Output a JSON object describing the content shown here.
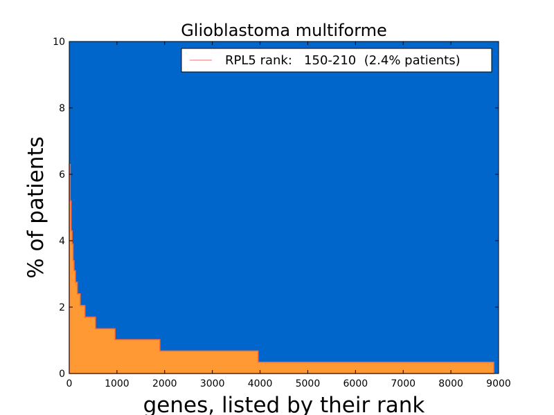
{
  "chart_data": {
    "type": "area",
    "title": "Glioblastoma multiforme",
    "xlabel": "genes, listed by their rank",
    "ylabel": "% of patients",
    "xlim": [
      0,
      9000
    ],
    "ylim": [
      0,
      10
    ],
    "xticks": [
      0,
      1000,
      2000,
      3000,
      4000,
      5000,
      6000,
      7000,
      8000,
      9000
    ],
    "yticks": [
      0,
      2,
      4,
      6,
      8,
      10
    ],
    "grid": false,
    "background_color": "#0066cc",
    "fill_color": "#ff9933",
    "edge_color": "#ff6633",
    "legend": {
      "placement": "top-right",
      "label": "RPL5 rank:   150-210  (2.4% patients)",
      "line_color": "#ff6666"
    },
    "series": [
      {
        "x": [
          0,
          20,
          20,
          40,
          40,
          60,
          60,
          80,
          80,
          100,
          100,
          130,
          130,
          170,
          170,
          230,
          230,
          330,
          330,
          550,
          550,
          960,
          960,
          1900,
          1900,
          3960,
          3960,
          8900,
          8900
        ],
        "y": [
          6.3,
          6.3,
          5.2,
          5.2,
          4.3,
          4.3,
          3.9,
          3.9,
          3.4,
          3.4,
          3.1,
          3.1,
          2.75,
          2.75,
          2.4,
          2.4,
          2.05,
          2.05,
          1.7,
          1.7,
          1.35,
          1.35,
          1.02,
          1.02,
          0.68,
          0.68,
          0.34,
          0.34,
          0
        ]
      }
    ]
  }
}
